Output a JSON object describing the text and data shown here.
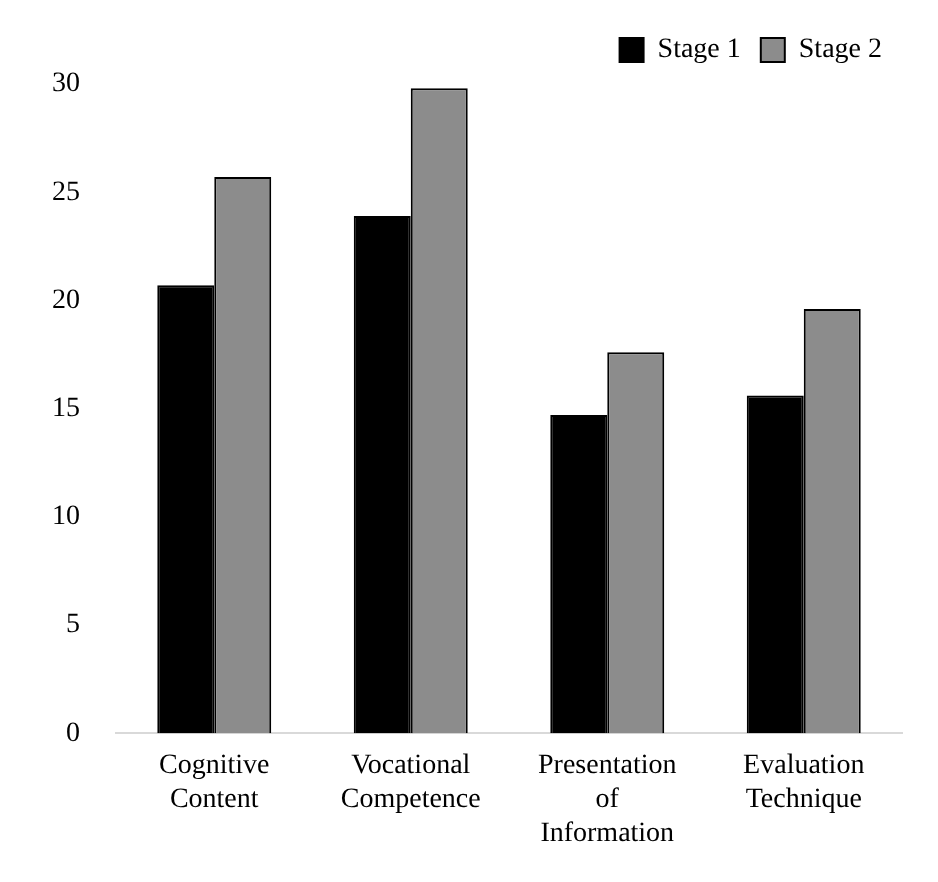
{
  "chart_data": {
    "type": "bar",
    "categories": [
      "Cognitive Content",
      "Vocational Competence",
      "Presentation of Information",
      "Evaluation Technique"
    ],
    "series": [
      {
        "name": "Stage 1",
        "color": "#000000",
        "values": [
          20.7,
          23.9,
          14.7,
          15.6
        ]
      },
      {
        "name": "Stage 2",
        "color": "#8c8c8c",
        "values": [
          25.7,
          29.8,
          17.6,
          19.6
        ]
      }
    ],
    "ylim": [
      0,
      30
    ],
    "yticks": [
      0,
      5,
      10,
      15,
      20,
      25,
      30
    ],
    "grid": false,
    "legend": "top right"
  }
}
